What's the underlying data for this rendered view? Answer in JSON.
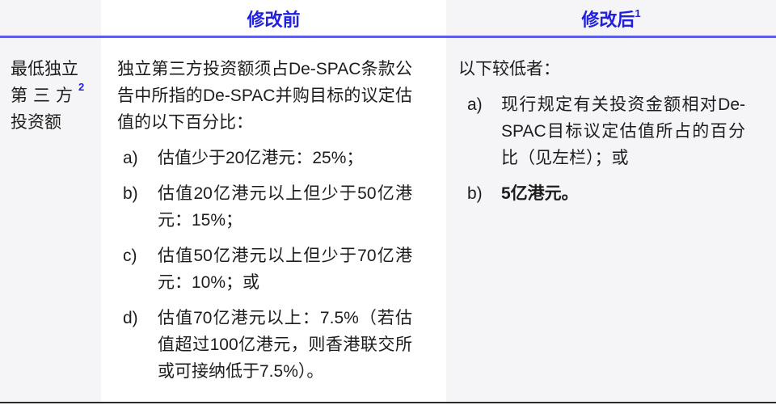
{
  "colors": {
    "accent_blue": "#2121dd",
    "rule_blue": "#5e5ee2",
    "rule_bottom": "#2b2b2b",
    "shaded_column_bg": "#f5f5f7",
    "body_text": "#1c1c1c"
  },
  "table": {
    "row_label": {
      "line1": "最低独立",
      "line2": "第三方",
      "line2_superscript": "2",
      "line3": "投资额"
    },
    "headers": {
      "before": "修改前",
      "after": "修改后",
      "after_superscript": "1"
    },
    "before": {
      "intro": "独立第三方投资额须占De-SPAC条款公告中所指的De-SPAC并购目标的议定估值的以下百分比：",
      "items": [
        {
          "marker": "a)",
          "text": "估值少于20亿港元：25%；"
        },
        {
          "marker": "b)",
          "text": "估值20亿港元以上但少于50亿港元：15%；"
        },
        {
          "marker": "c)",
          "text": "估值50亿港元以上但少于70亿港元：10%；或"
        },
        {
          "marker": "d)",
          "text": "估值70亿港元以上：7.5%（若估值超过100亿港元，则香港联交所或可接纳低于7.5%）。"
        }
      ]
    },
    "after": {
      "intro": "以下较低者：",
      "items": [
        {
          "marker": "a)",
          "text": "现行规定有关投资金额相对De-SPAC目标议定估值所占的百分比（见左栏）；或"
        },
        {
          "marker": "b)",
          "text": "5亿港元。"
        }
      ]
    }
  }
}
